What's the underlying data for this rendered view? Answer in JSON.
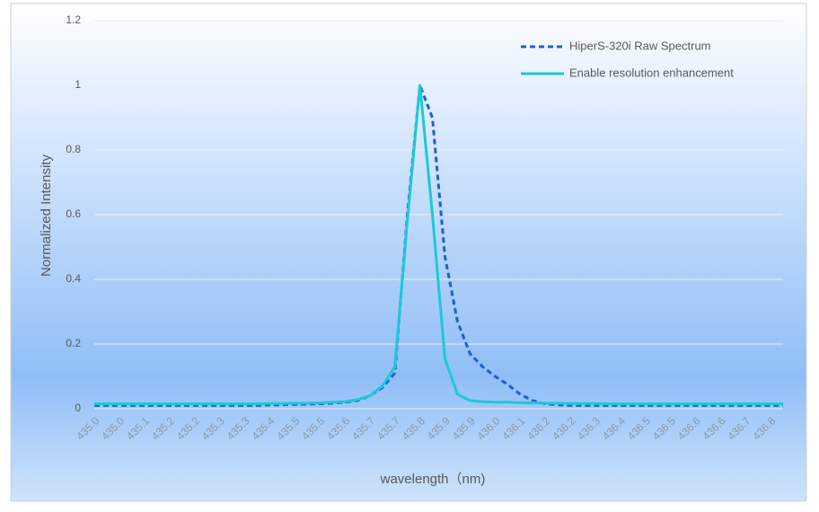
{
  "chart_data": {
    "type": "line",
    "x_label": "wavelength（nm)",
    "y_label": "Normalized Intensity",
    "categories": [
      "435.0",
      null,
      "435.0",
      null,
      "435.1",
      null,
      "435.2",
      null,
      "435.2",
      null,
      "435.3",
      null,
      "435.3",
      null,
      "435.4",
      null,
      "435.5",
      null,
      "435.5",
      null,
      "435.6",
      null,
      "435.7",
      null,
      "435.7",
      null,
      "435.8",
      null,
      "435.9",
      null,
      "435.9",
      null,
      "436.0",
      null,
      "436.1",
      null,
      "436.2",
      null,
      "436.2",
      null,
      "436.3",
      null,
      "436.4",
      null,
      "436.5",
      null,
      "436.5",
      null,
      "436.6",
      null,
      "436.6",
      null,
      "436.7",
      null,
      "436.8",
      null
    ],
    "series": [
      {
        "name": "HiperS-320i Raw Spectrum",
        "color": "#1f5fd6",
        "dash": true,
        "values": [
          0.01,
          0.01,
          0.01,
          0.01,
          0.01,
          0.01,
          0.01,
          0.01,
          0.01,
          0.01,
          0.01,
          0.01,
          0.01,
          0.01,
          0.012,
          0.012,
          0.013,
          0.014,
          0.015,
          0.017,
          0.02,
          0.025,
          0.04,
          0.065,
          0.11,
          0.6,
          1.0,
          0.9,
          0.47,
          0.27,
          0.17,
          0.13,
          0.1,
          0.075,
          0.045,
          0.025,
          0.015,
          0.012,
          0.01,
          0.01,
          0.01,
          0.01,
          0.01,
          0.01,
          0.01,
          0.01,
          0.01,
          0.01,
          0.01,
          0.01,
          0.01,
          0.01,
          0.01,
          0.01,
          0.01,
          0.01
        ]
      },
      {
        "name": "Enable resolution enhancement",
        "color": "#1ec8d8",
        "dash": false,
        "values": [
          0.015,
          0.015,
          0.015,
          0.015,
          0.015,
          0.015,
          0.015,
          0.015,
          0.015,
          0.015,
          0.015,
          0.015,
          0.015,
          0.015,
          0.016,
          0.016,
          0.017,
          0.017,
          0.018,
          0.02,
          0.022,
          0.028,
          0.04,
          0.07,
          0.13,
          0.58,
          1.0,
          0.6,
          0.155,
          0.045,
          0.025,
          0.022,
          0.02,
          0.02,
          0.019,
          0.018,
          0.017,
          0.017,
          0.016,
          0.016,
          0.016,
          0.015,
          0.015,
          0.015,
          0.015,
          0.015,
          0.015,
          0.015,
          0.015,
          0.015,
          0.015,
          0.015,
          0.015,
          0.015,
          0.015,
          0.015
        ]
      }
    ],
    "ylim": [
      0,
      1.2
    ],
    "yticks": [
      0,
      0.2,
      0.4,
      0.6,
      0.8,
      1,
      1.2
    ],
    "grid": true,
    "legend": "top-right"
  }
}
